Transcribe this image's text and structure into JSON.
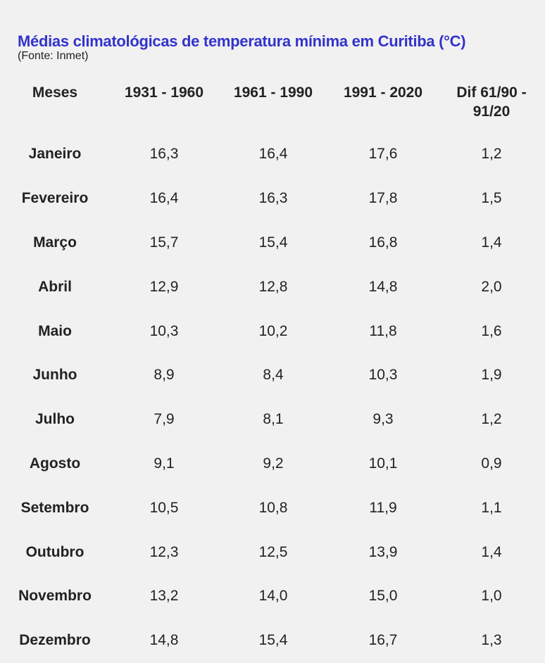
{
  "header": {
    "title": "Médias climatológicas de temperatura mínima em Curitiba (°C)",
    "source": "(Fonte: Inmet)"
  },
  "colors": {
    "title": "#3333cc",
    "text": "#222222",
    "background": "#f1f1f1"
  },
  "chart_data": {
    "type": "table",
    "title": "Médias climatológicas de temperatura mínima em Curitiba (°C)",
    "columns": [
      "Meses",
      "1931 - 1960",
      "1961 - 1990",
      "1991 - 2020",
      "Dif 61/90 - 91/20"
    ],
    "rows": [
      [
        "Janeiro",
        "16,3",
        "16,4",
        "17,6",
        "1,2"
      ],
      [
        "Fevereiro",
        "16,4",
        "16,3",
        "17,8",
        "1,5"
      ],
      [
        "Março",
        "15,7",
        "15,4",
        "16,8",
        "1,4"
      ],
      [
        "Abril",
        "12,9",
        "12,8",
        "14,8",
        "2,0"
      ],
      [
        "Maio",
        "10,3",
        "10,2",
        "11,8",
        "1,6"
      ],
      [
        "Junho",
        "8,9",
        "8,4",
        "10,3",
        "1,9"
      ],
      [
        "Julho",
        "7,9",
        "8,1",
        "9,3",
        "1,2"
      ],
      [
        "Agosto",
        "9,1",
        "9,2",
        "10,1",
        "0,9"
      ],
      [
        "Setembro",
        "10,5",
        "10,8",
        "11,9",
        "1,1"
      ],
      [
        "Outubro",
        "12,3",
        "12,5",
        "13,9",
        "1,4"
      ],
      [
        "Novembro",
        "13,2",
        "14,0",
        "15,0",
        "1,0"
      ],
      [
        "Dezembro",
        "14,8",
        "15,4",
        "16,7",
        "1,3"
      ]
    ]
  }
}
